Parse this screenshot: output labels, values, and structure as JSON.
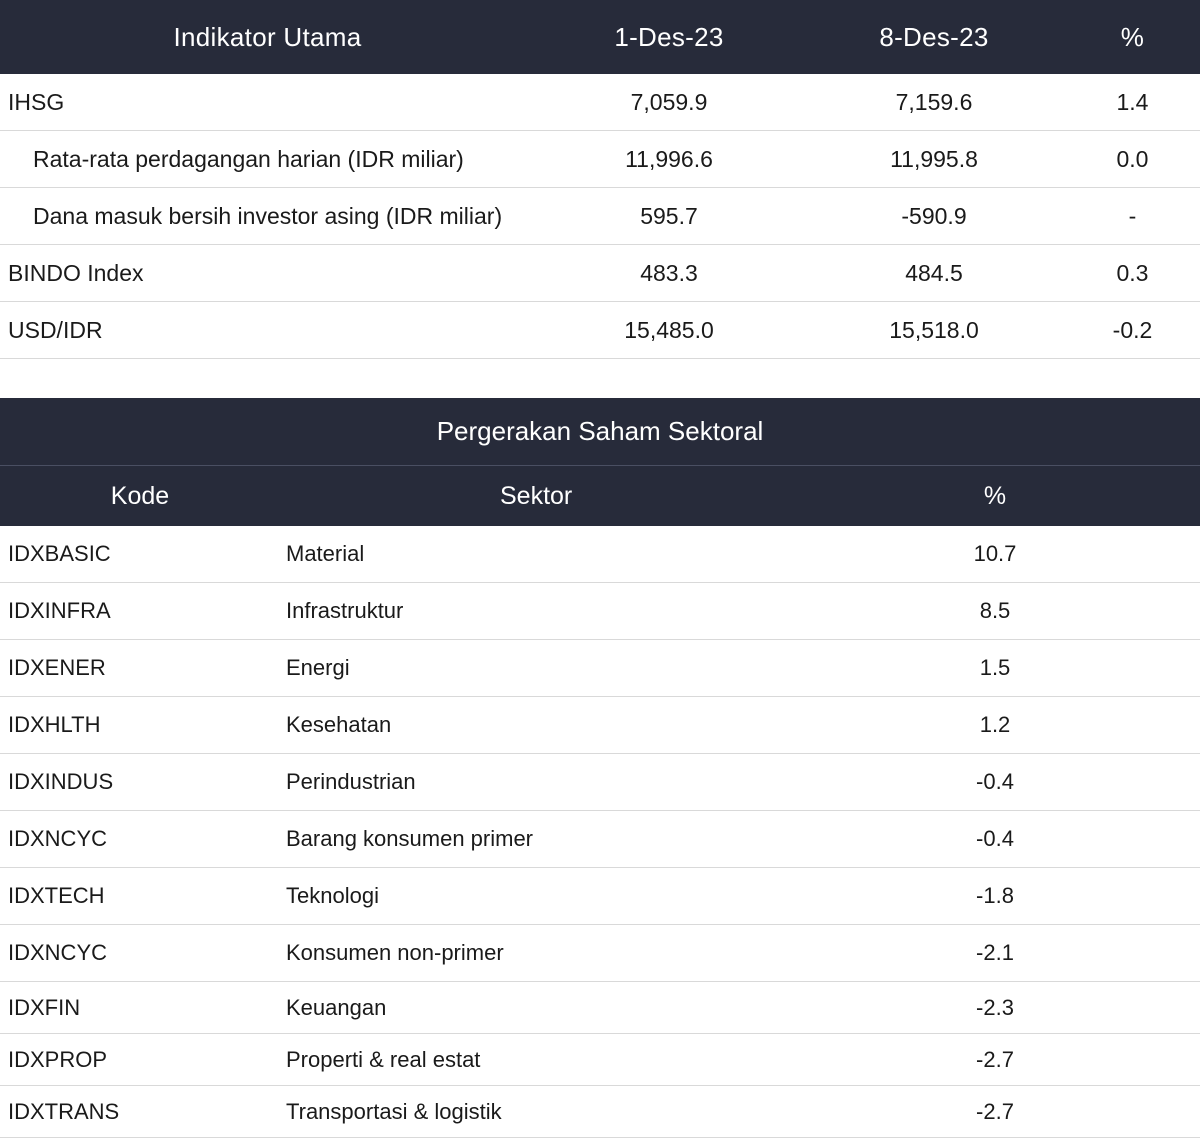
{
  "indicators": {
    "header": {
      "name": "Indikator Utama",
      "date1": "1-Des-23",
      "date2": "8-Des-23",
      "pct": "%"
    },
    "rows": [
      {
        "name": "IHSG",
        "d1": "7,059.9",
        "d2": "7,159.6",
        "pct": "1.4"
      },
      {
        "name": "Rata-rata perdagangan harian (IDR miliar)",
        "d1": "11,996.6",
        "d2": "11,995.8",
        "pct": "0.0"
      },
      {
        "name": "Dana masuk bersih investor asing (IDR miliar)",
        "d1": "595.7",
        "d2": "-590.9",
        "pct": "-"
      },
      {
        "name": "BINDO Index",
        "d1": "483.3",
        "d2": "484.5",
        "pct": "0.3"
      },
      {
        "name": "USD/IDR",
        "d1": "15,485.0",
        "d2": "15,518.0",
        "pct": "-0.2"
      }
    ]
  },
  "sectors": {
    "title": "Pergerakan Saham Sektoral",
    "header": {
      "kode": "Kode",
      "sektor": "Sektor",
      "pct": "%"
    },
    "rows": [
      {
        "kode": "IDXBASIC",
        "sektor": "Material",
        "pct": "10.7"
      },
      {
        "kode": "IDXINFRA",
        "sektor": "Infrastruktur",
        "pct": "8.5"
      },
      {
        "kode": "IDXENER",
        "sektor": "Energi",
        "pct": "1.5"
      },
      {
        "kode": "IDXHLTH",
        "sektor": "Kesehatan",
        "pct": "1.2"
      },
      {
        "kode": "IDXINDUS",
        "sektor": "Perindustrian",
        "pct": "-0.4"
      },
      {
        "kode": "IDXNCYC",
        "sektor": "Barang konsumen primer",
        "pct": "-0.4"
      },
      {
        "kode": "IDXTECH",
        "sektor": "Teknologi",
        "pct": "-1.8"
      },
      {
        "kode": "IDXNCYC",
        "sektor": "Konsumen non-primer",
        "pct": "-2.1"
      },
      {
        "kode": "IDXFIN",
        "sektor": "Keuangan",
        "pct": "-2.3"
      },
      {
        "kode": "IDXPROP",
        "sektor": "Properti & real estat",
        "pct": "-2.7"
      },
      {
        "kode": "IDXTRANS",
        "sektor": "Transportasi & logistik",
        "pct": "-2.7"
      }
    ]
  }
}
